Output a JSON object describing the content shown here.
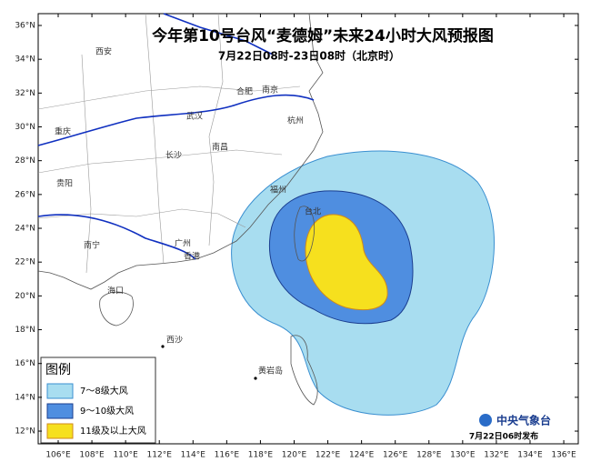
{
  "map": {
    "title": "今年第10号台风“麦德姆”未来24小时大风预报图",
    "subtitle": "7月22日08时-23日08时（北京时）",
    "lat_labels": [
      "36°N",
      "34°N",
      "32°N",
      "30°N",
      "28°N",
      "26°N",
      "24°N",
      "22°N",
      "20°N",
      "18°N",
      "16°N",
      "14°N",
      "12°N"
    ],
    "lon_labels": [
      "106°E",
      "108°E",
      "110°E",
      "112°E",
      "114°E",
      "116°E",
      "118°E",
      "120°E",
      "122°E",
      "124°E",
      "126°E",
      "128°E",
      "130°E",
      "132°E",
      "134°E",
      "136°E"
    ],
    "cities": [
      "西安",
      "合肥",
      "南京",
      "武汉",
      "杭州",
      "重庆",
      "长沙",
      "南昌",
      "贵阳",
      "福州",
      "台北",
      "南宁",
      "广州",
      "香港",
      "海口",
      "西沙",
      "黄岩岛"
    ],
    "legend": {
      "title": "图例",
      "items": [
        "7～8级大风",
        "9～10级大风",
        "11级及以上大风"
      ]
    },
    "footer": {
      "agency": "中央气象台",
      "issued": "7月22日06时发布"
    }
  }
}
